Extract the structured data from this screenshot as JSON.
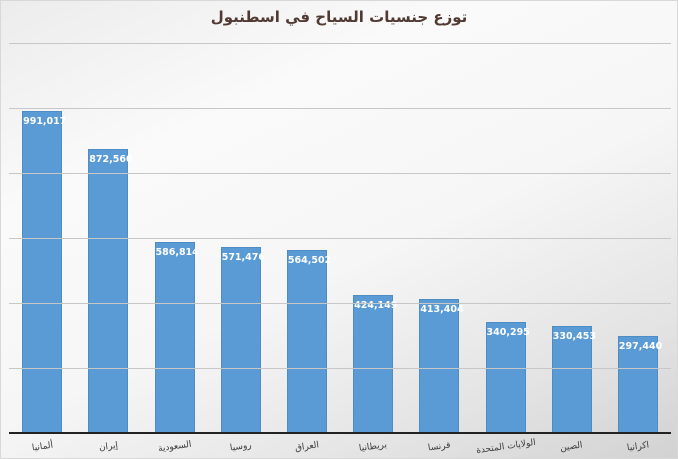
{
  "chart_data": {
    "type": "bar",
    "title": "توزع جنسيات السياح في اسطنبول",
    "categories": [
      "ألمانيا",
      "إيران",
      "السعودية",
      "روسيا",
      "العراق",
      "بريطانيا",
      "فرنسا",
      "الولايات المتحدة",
      "الصين",
      "اكرانيا"
    ],
    "values": [
      991017,
      872560,
      586814,
      571476,
      564502,
      424149,
      413404,
      340295,
      330453,
      297440
    ],
    "value_labels": [
      "991,017",
      "872,560",
      "586,814",
      "571,476",
      "564,502",
      "424,149",
      "413,404",
      "340,295",
      "330,453",
      "297,440"
    ],
    "xlabel": "",
    "ylabel": "",
    "ylim": [
      0,
      1200000
    ],
    "gridline_interval": 200000,
    "y_tick_labels_visible": false,
    "grid": "horizontal",
    "legend": "none",
    "colors": {
      "bar_fill": "#5b9bd5",
      "bar_border": "#4d8dc4",
      "value_label": "#ffffff",
      "category_label": "#3d3d3d",
      "title": "#513a33",
      "gridline": "#c7c7c7",
      "axis_line": "#222222"
    }
  }
}
